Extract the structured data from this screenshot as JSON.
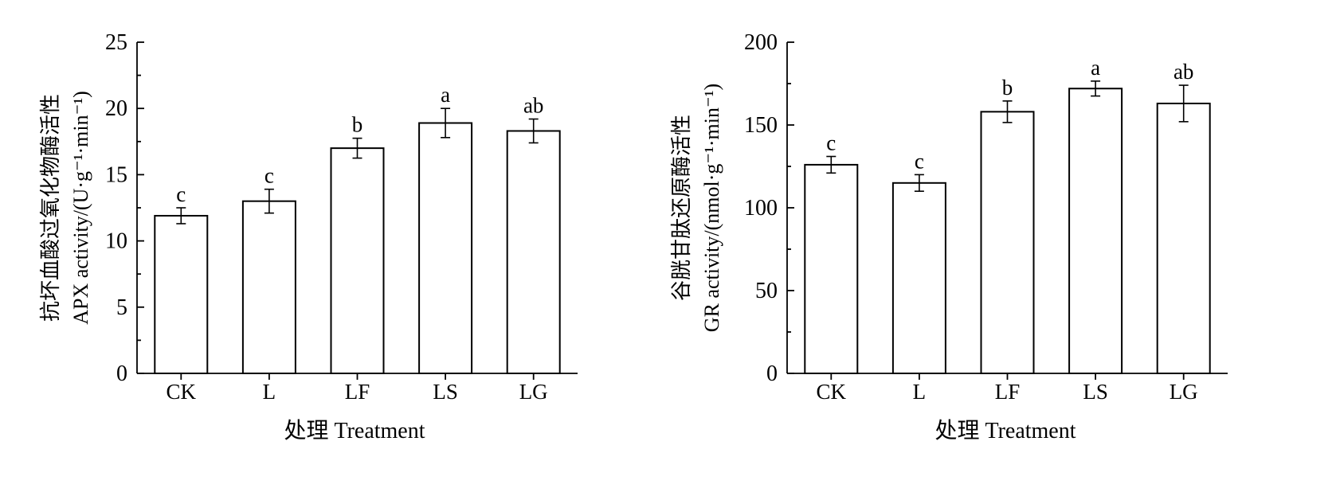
{
  "chart_data": [
    {
      "type": "bar",
      "ylabel_cn": "抗坏血酸过氧化物酶活性",
      "ylabel_en": "APX activity/(U·g⁻¹·min⁻¹)",
      "xlabel": "处理 Treatment",
      "categories": [
        "CK",
        "L",
        "LF",
        "LS",
        "LG"
      ],
      "values": [
        11.9,
        13.0,
        17.0,
        18.9,
        18.3
      ],
      "errors": [
        0.6,
        0.9,
        0.75,
        1.1,
        0.9
      ],
      "letters": [
        "c",
        "c",
        "b",
        "a",
        "ab"
      ],
      "ylim": [
        0,
        25
      ],
      "yticks": [
        0,
        5,
        10,
        15,
        20,
        25
      ]
    },
    {
      "type": "bar",
      "ylabel_cn": "谷胱甘肽还原酶活性",
      "ylabel_en": "GR activity/(nmol·g⁻¹·min⁻¹)",
      "xlabel": "处理 Treatment",
      "categories": [
        "CK",
        "L",
        "LF",
        "LS",
        "LG"
      ],
      "values": [
        126,
        115,
        158,
        172,
        163
      ],
      "errors": [
        5,
        5,
        6.5,
        4.5,
        11
      ],
      "letters": [
        "c",
        "c",
        "b",
        "a",
        "ab"
      ],
      "ylim": [
        0,
        200
      ],
      "yticks": [
        0,
        50,
        100,
        150,
        200
      ]
    }
  ]
}
